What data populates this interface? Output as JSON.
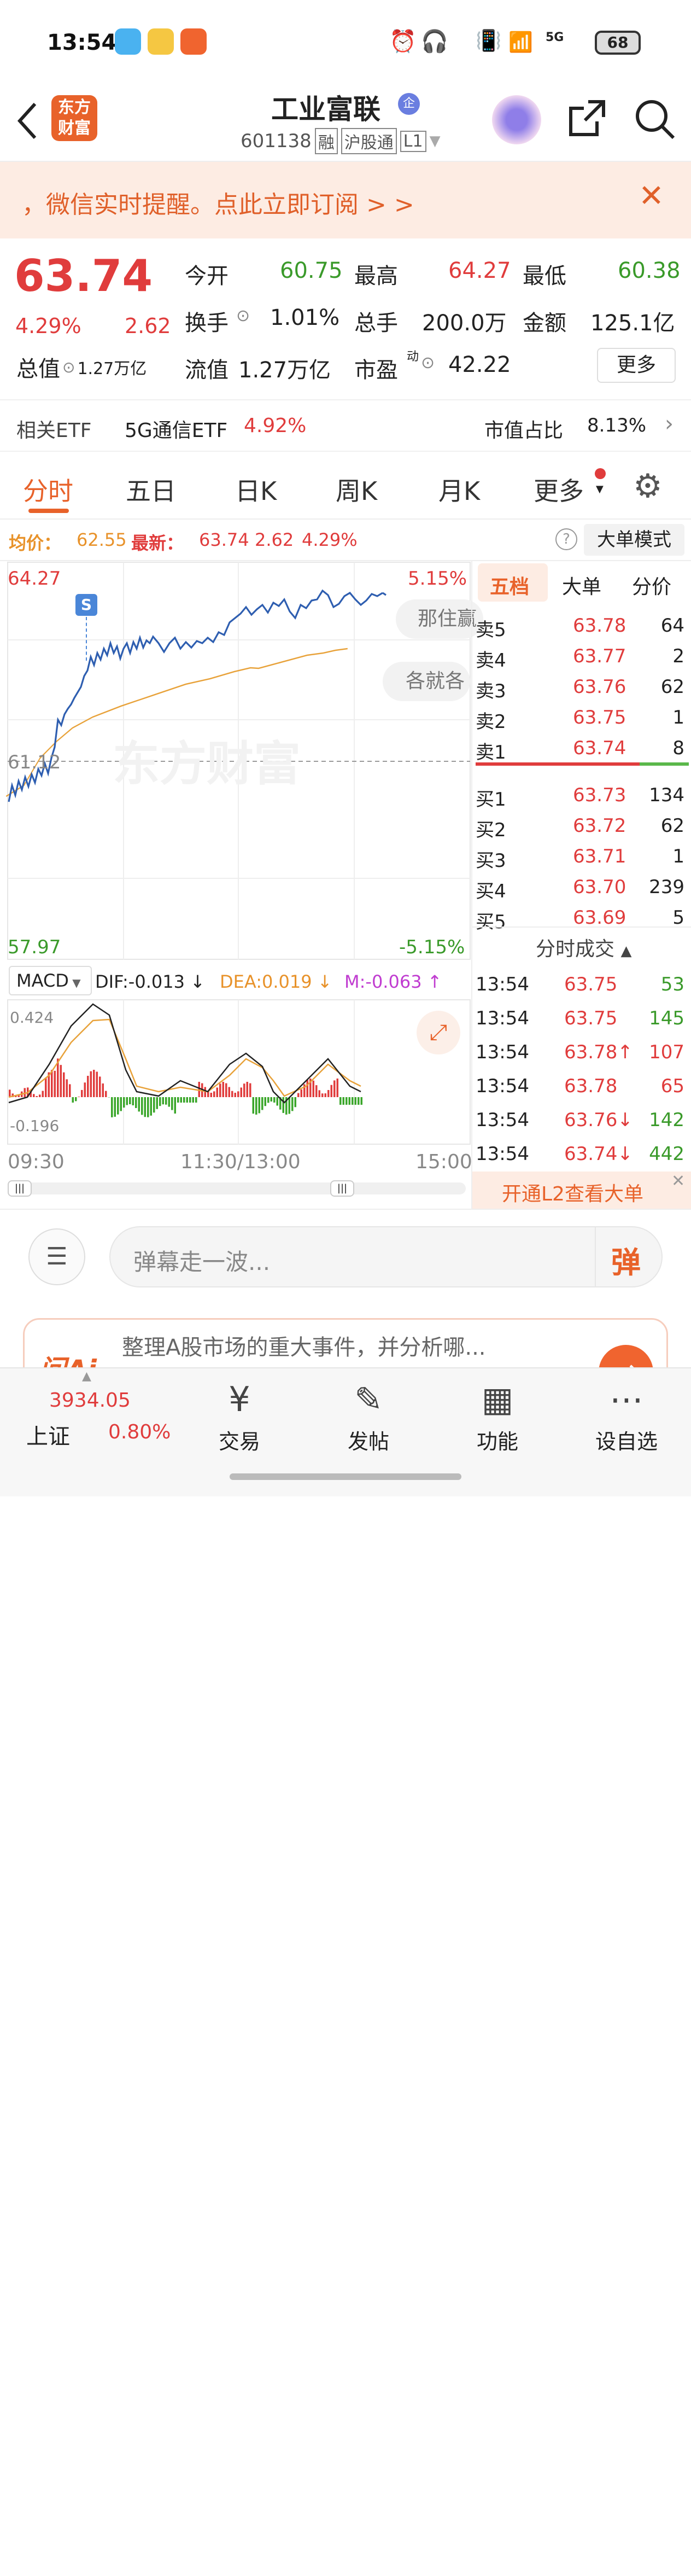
{
  "status_bar": {
    "time": "13:54",
    "battery": "68",
    "network": "5G"
  },
  "header": {
    "title": "工业富联",
    "title_badge": "企",
    "code": "601138",
    "tags": [
      "融",
      "沪股通",
      "L1"
    ],
    "logo_line1": "东方",
    "logo_line2": "财富"
  },
  "banner": {
    "text": "，微信实时提醒。点此立即订阅 > >"
  },
  "quote": {
    "price": "63.74",
    "change_pct": "4.29%",
    "change": "2.62",
    "open_label": "今开",
    "open": "60.75",
    "high_label": "最高",
    "high": "64.27",
    "low_label": "最低",
    "low": "60.38",
    "turnover_label": "换手",
    "turnover": "1.01%",
    "volume_label": "总手",
    "volume": "200.0万",
    "amount_label": "金额",
    "amount": "125.1亿",
    "mktcap_label": "总值",
    "mktcap": "1.27万亿",
    "float_label": "流值",
    "float": "1.27万亿",
    "pe_label": "市盈",
    "pe_sup": "动",
    "pe": "42.22",
    "more_button": "更多"
  },
  "etf": {
    "label": "相关ETF",
    "name": "5G通信ETF",
    "pct": "4.92%",
    "share_label": "市值占比",
    "share": "8.13%"
  },
  "tabs": [
    "分时",
    "五日",
    "日K",
    "周K",
    "月K",
    "更多"
  ],
  "avg_line": {
    "avg_label": "均价：",
    "avg": "62.55",
    "latest_label": "最新：",
    "latest": "63.74",
    "chg": "2.62",
    "pct": "4.29%",
    "mode_button": "大单模式",
    "help": "?"
  },
  "chart": {
    "y_high": "64.27",
    "y_mid": "61.12",
    "y_low": "57.97",
    "pct_high": "5.15%",
    "pct_low": "-5.15%",
    "marker": "S",
    "watermark": "东方财富",
    "bubbles": [
      "那住赢",
      "各就各"
    ],
    "macd_label": "MACD",
    "dif": "DIF:-0.013",
    "dea": "DEA:0.019",
    "m": "M:-0.063",
    "macd_high": "0.424",
    "macd_low": "-0.196",
    "time_axis": [
      "09:30",
      "11:30/13:00",
      "15:00"
    ]
  },
  "book": {
    "tabs": [
      "五档",
      "大单",
      "分价"
    ],
    "asks": [
      {
        "label": "卖5",
        "price": "63.78",
        "vol": "64"
      },
      {
        "label": "卖4",
        "price": "63.77",
        "vol": "2"
      },
      {
        "label": "卖3",
        "price": "63.76",
        "vol": "62"
      },
      {
        "label": "卖2",
        "price": "63.75",
        "vol": "1"
      },
      {
        "label": "卖1",
        "price": "63.74",
        "vol": "8"
      }
    ],
    "bids": [
      {
        "label": "买1",
        "price": "63.73",
        "vol": "134"
      },
      {
        "label": "买2",
        "price": "63.72",
        "vol": "62"
      },
      {
        "label": "买3",
        "price": "63.71",
        "vol": "1"
      },
      {
        "label": "买4",
        "price": "63.70",
        "vol": "239"
      },
      {
        "label": "买5",
        "price": "63.69",
        "vol": "5"
      }
    ],
    "trades_title": "分时成交",
    "trades": [
      {
        "time": "13:54",
        "price": "63.75",
        "vol": "53",
        "arrow": "",
        "vcolor": "#3a9a2a"
      },
      {
        "time": "13:54",
        "price": "63.75",
        "vol": "145",
        "arrow": "",
        "vcolor": "#3a9a2a"
      },
      {
        "time": "13:54",
        "price": "63.78",
        "vol": "107",
        "arrow": "↑",
        "vcolor": "#e03c3c"
      },
      {
        "time": "13:54",
        "price": "63.78",
        "vol": "65",
        "arrow": "",
        "vcolor": "#e03c3c"
      },
      {
        "time": "13:54",
        "price": "63.76",
        "vol": "142",
        "arrow": "↓",
        "vcolor": "#3a9a2a"
      },
      {
        "time": "13:54",
        "price": "63.74",
        "vol": "442",
        "arrow": "↓",
        "vcolor": "#3a9a2a"
      }
    ],
    "l2_button": "开通L2查看大单"
  },
  "danmu": {
    "placeholder": "弹幕走一波...",
    "button": "弹"
  },
  "askai": {
    "logo": "问Ai",
    "text": "整理A股市场的重大事件，并分析哪..."
  },
  "bottom_nav": {
    "index_value": "3934.05",
    "index_name": "上证",
    "index_pct": "0.80%",
    "items": [
      "交易",
      "发帖",
      "功能",
      "设自选"
    ]
  },
  "colors": {
    "up": "#e03c3c",
    "down": "#3a9a2a",
    "accent": "#e8622a",
    "avg_line": "#e8a23a",
    "price_line": "#2e5eb0"
  }
}
